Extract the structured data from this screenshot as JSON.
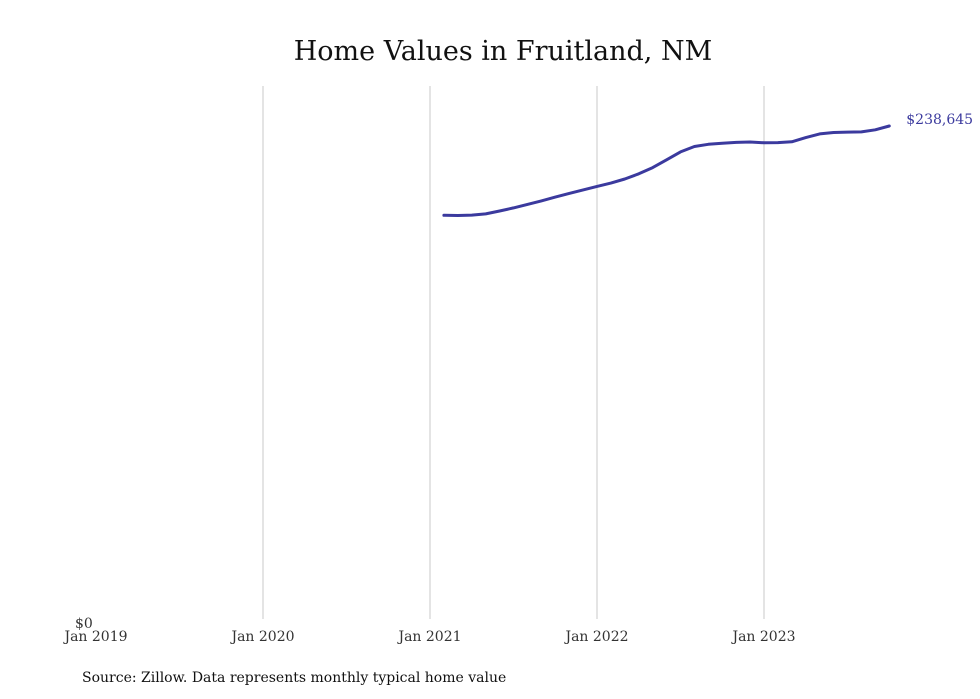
{
  "chart_data": {
    "type": "line",
    "title": "Home Values in Fruitland, NM",
    "xlabel": "",
    "ylabel": "",
    "x_ticks": [
      "Jan 2019",
      "Jan 2020",
      "Jan 2021",
      "Jan 2022",
      "Jan 2023"
    ],
    "xlim": [
      "2019-01",
      "2023-12"
    ],
    "y_ticks": [
      "$0"
    ],
    "ylim": [
      0,
      258000
    ],
    "grid": "vertical",
    "series": [
      {
        "color": "#3b3a9e",
        "end_label": "$238,645",
        "x": [
          "2021-02",
          "2021-03",
          "2021-04",
          "2021-05",
          "2021-06",
          "2021-07",
          "2021-08",
          "2021-09",
          "2021-10",
          "2021-11",
          "2021-12",
          "2022-01",
          "2022-02",
          "2022-03",
          "2022-04",
          "2022-05",
          "2022-06",
          "2022-07",
          "2022-08",
          "2022-09",
          "2022-10",
          "2022-11",
          "2022-12",
          "2023-01",
          "2023-02",
          "2023-03",
          "2023-04",
          "2023-05",
          "2023-06",
          "2023-07",
          "2023-08",
          "2023-09",
          "2023-10"
        ],
        "values": [
          195400,
          195300,
          195500,
          196100,
          197500,
          199000,
          200700,
          202400,
          204200,
          206000,
          207700,
          209400,
          211000,
          213000,
          215500,
          218500,
          222300,
          226100,
          228700,
          229800,
          230300,
          230700,
          230900,
          230500,
          230600,
          231000,
          233000,
          234800,
          235500,
          235700,
          235800,
          236800,
          238645
        ]
      }
    ]
  },
  "source_note": "Source: Zillow. Data represents monthly typical home value"
}
